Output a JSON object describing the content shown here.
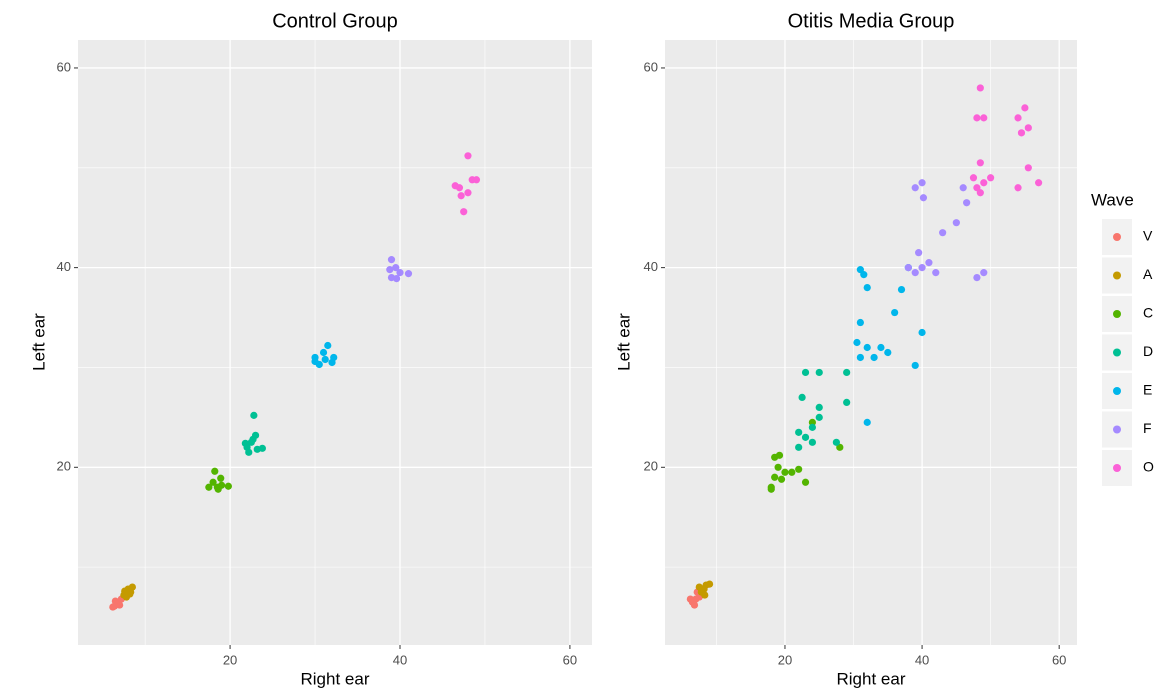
{
  "chart_data": [
    {
      "type": "scatter",
      "title": "Control Group",
      "x_label": "Right ear",
      "y_label": "Left ear",
      "xlim": [
        2.1,
        62.6
      ],
      "ylim": [
        2.2,
        62.8
      ],
      "xticks": [
        20,
        40,
        60
      ],
      "yticks": [
        20,
        40,
        60
      ],
      "minor_xticks": [
        10,
        30,
        50
      ],
      "minor_yticks": [
        10,
        30,
        50
      ],
      "grid": true,
      "series": [
        {
          "name": "V",
          "color": "#F8766D",
          "x": [
            6.2,
            6.8,
            7.0,
            6.5,
            7.2,
            6.4
          ],
          "y": [
            6.0,
            6.4,
            6.2,
            6.6,
            6.8,
            6.1
          ]
        },
        {
          "name": "A",
          "color": "#C49A00",
          "x": [
            7.5,
            8.0,
            8.3,
            7.8,
            8.5,
            7.6,
            8.2
          ],
          "y": [
            7.2,
            7.8,
            7.5,
            7.0,
            8.0,
            7.6,
            7.3
          ]
        },
        {
          "name": "C",
          "color": "#53B400",
          "x": [
            18,
            18.5,
            19,
            18.2,
            17.5,
            19.8,
            18.6,
            18.9
          ],
          "y": [
            18.5,
            18,
            18.2,
            19.6,
            18,
            18.1,
            17.8,
            18.9
          ]
        },
        {
          "name": "D",
          "color": "#00C094",
          "x": [
            22,
            22.5,
            23,
            22.8,
            23.8,
            22.2,
            22.7,
            21.8,
            23.2
          ],
          "y": [
            22,
            22.5,
            23.2,
            25.2,
            21.9,
            21.5,
            22.8,
            22.4,
            21.8
          ]
        },
        {
          "name": "E",
          "color": "#00B6EB",
          "x": [
            30,
            31,
            31.5,
            32,
            30.5,
            31.2,
            30,
            32.2
          ],
          "y": [
            31,
            31.5,
            32.2,
            30.5,
            30.3,
            30.8,
            30.6,
            31
          ]
        },
        {
          "name": "F",
          "color": "#A58AFF",
          "x": [
            39,
            39.5,
            39,
            40,
            41,
            38.8,
            39.6
          ],
          "y": [
            39,
            40,
            40.8,
            39.5,
            39.4,
            39.8,
            38.9
          ]
        },
        {
          "name": "O",
          "color": "#FB61D7",
          "x": [
            47,
            48,
            47.5,
            48.5,
            49,
            46.5,
            48,
            47.2
          ],
          "y": [
            48,
            51.2,
            45.6,
            48.8,
            48.8,
            48.2,
            47.5,
            47.2
          ]
        }
      ]
    },
    {
      "type": "scatter",
      "title": "Otitis Media Group",
      "x_label": "Right ear",
      "y_label": "Left ear",
      "xlim": [
        2.5,
        62.6
      ],
      "ylim": [
        2.2,
        62.8
      ],
      "xticks": [
        20,
        40,
        60
      ],
      "yticks": [
        20,
        40,
        60
      ],
      "minor_xticks": [
        10,
        30,
        50
      ],
      "minor_yticks": [
        10,
        30,
        50
      ],
      "grid": true,
      "legend": {
        "title": "Wave",
        "position": "right"
      },
      "series": [
        {
          "name": "V",
          "color": "#F8766D",
          "x": [
            6.5,
            7,
            7.5,
            6.8,
            7.2,
            6.2
          ],
          "y": [
            6.5,
            6.8,
            7,
            6.2,
            7.5,
            6.8
          ]
        },
        {
          "name": "A",
          "color": "#C49A00",
          "x": [
            7.8,
            8.5,
            8.2,
            9,
            7.5,
            8.3
          ],
          "y": [
            7.5,
            8.2,
            7.8,
            8.3,
            8,
            7.2
          ]
        },
        {
          "name": "C",
          "color": "#53B400",
          "x": [
            18,
            18.5,
            19,
            20,
            18.5,
            19.2,
            21,
            23,
            18,
            22,
            19.5,
            24,
            28
          ],
          "y": [
            18,
            19,
            20,
            19.5,
            21,
            21.2,
            19.5,
            18.5,
            17.8,
            19.8,
            18.8,
            24.5,
            22
          ]
        },
        {
          "name": "D",
          "color": "#00C094",
          "x": [
            22,
            23,
            24,
            25,
            23,
            25,
            22.5,
            27.5,
            29,
            29,
            22,
            24,
            25
          ],
          "y": [
            22,
            23,
            24,
            26,
            29.5,
            29.5,
            27,
            22.5,
            26.5,
            29.5,
            23.5,
            22.5,
            25
          ]
        },
        {
          "name": "E",
          "color": "#00B6EB",
          "x": [
            31,
            32,
            31,
            31,
            32,
            31.5,
            33,
            35,
            36,
            37,
            38,
            39,
            40,
            32,
            30.5,
            34
          ],
          "y": [
            31,
            32,
            34.5,
            39.8,
            38,
            39.3,
            31,
            31.5,
            35.5,
            37.8,
            40,
            30.2,
            33.5,
            24.5,
            32.5,
            32
          ]
        },
        {
          "name": "F",
          "color": "#A58AFF",
          "x": [
            39,
            40,
            39.5,
            39,
            40,
            40.2,
            42,
            43,
            45,
            46.5,
            46,
            48,
            49,
            41,
            38
          ],
          "y": [
            39.5,
            40,
            41.5,
            48,
            48.5,
            47,
            39.5,
            43.5,
            44.5,
            46.5,
            48,
            39,
            39.5,
            40.5,
            40
          ]
        },
        {
          "name": "O",
          "color": "#FB61D7",
          "x": [
            48,
            48.5,
            48.5,
            48,
            49,
            54,
            55,
            55.5,
            54.5,
            54,
            55.5,
            57,
            50,
            49,
            47.5,
            48.5
          ],
          "y": [
            48,
            50.5,
            58,
            55,
            55,
            55,
            56,
            54,
            53.5,
            48,
            50,
            48.5,
            49,
            48.5,
            49,
            47.5
          ]
        }
      ]
    }
  ]
}
